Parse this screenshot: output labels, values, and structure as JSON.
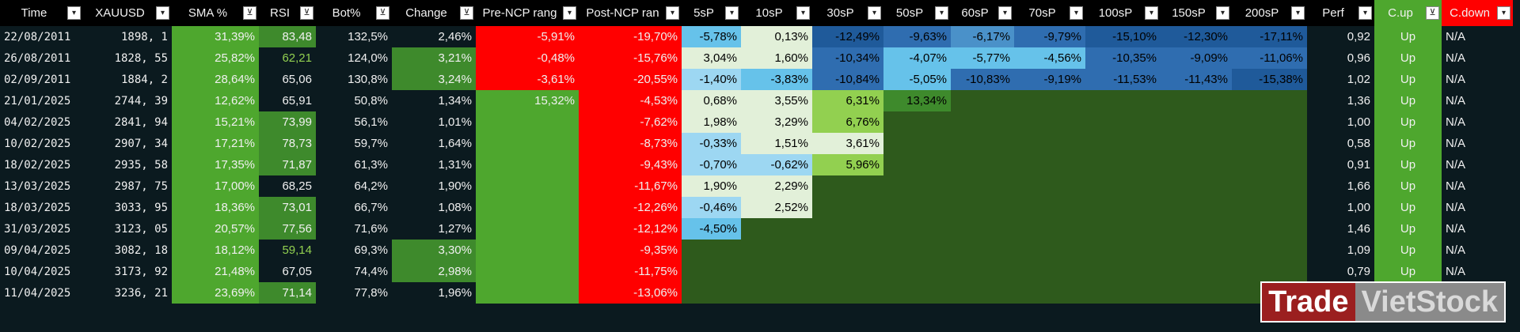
{
  "columns": [
    {
      "key": "time",
      "label": "Time",
      "filter": "dropdown",
      "width": 105,
      "bg": "#000000"
    },
    {
      "key": "xau",
      "label": "XAUUSD",
      "filter": "dropdown",
      "width": 112,
      "bg": "#000000"
    },
    {
      "key": "sma",
      "label": "SMA %",
      "filter": "active",
      "width": 110,
      "bg": "#000000"
    },
    {
      "key": "rsi",
      "label": "RSI",
      "filter": "active",
      "width": 72,
      "bg": "#000000"
    },
    {
      "key": "bot",
      "label": "Bot%",
      "filter": "active",
      "width": 96,
      "bg": "#000000"
    },
    {
      "key": "change",
      "label": "Change",
      "filter": "active",
      "width": 106,
      "bg": "#000000"
    },
    {
      "key": "pre",
      "label": "Pre-NCP rang",
      "filter": "dropdown",
      "width": 130,
      "bg": "#000000"
    },
    {
      "key": "post",
      "label": "Post-NCP ran",
      "filter": "dropdown",
      "width": 130,
      "bg": "#000000"
    },
    {
      "key": "s5",
      "label": "5sP",
      "filter": "dropdown",
      "width": 75,
      "bg": "#000000"
    },
    {
      "key": "s10",
      "label": "10sP",
      "filter": "dropdown",
      "width": 90,
      "bg": "#000000"
    },
    {
      "key": "s30",
      "label": "30sP",
      "filter": "dropdown",
      "width": 90,
      "bg": "#000000"
    },
    {
      "key": "s50",
      "label": "50sP",
      "filter": "dropdown",
      "width": 85,
      "bg": "#000000"
    },
    {
      "key": "s60",
      "label": "60sP",
      "filter": "dropdown",
      "width": 80,
      "bg": "#000000"
    },
    {
      "key": "s70",
      "label": "70sP",
      "filter": "dropdown",
      "width": 90,
      "bg": "#000000"
    },
    {
      "key": "s100",
      "label": "100sP",
      "filter": "dropdown",
      "width": 95,
      "bg": "#000000"
    },
    {
      "key": "s150",
      "label": "150sP",
      "filter": "dropdown",
      "width": 90,
      "bg": "#000000"
    },
    {
      "key": "s200",
      "label": "200sP",
      "filter": "dropdown",
      "width": 95,
      "bg": "#000000"
    },
    {
      "key": "perf",
      "label": "Perf",
      "filter": "dropdown",
      "width": 85,
      "bg": "#000000"
    },
    {
      "key": "cup",
      "label": "C.up",
      "filter": "active",
      "width": 85,
      "bg": "#4ea72e"
    },
    {
      "key": "cdown",
      "label": "C.down",
      "filter": "dropdown",
      "width": 90,
      "bg": "#ff0000"
    }
  ],
  "palette": {
    "empty": "#0b1a1f",
    "dark_green": "#2e5a1c",
    "mid_green": "#3e8a2c",
    "light_green": "#4ea72e",
    "pale_green_1": "#e2f0d9",
    "pale_green_2": "#c6e0b4",
    "green_cell": "#92d050",
    "red": "#ff0000",
    "blue_light": "#9dd7f2",
    "blue_mid": "#66c2ea",
    "blue_med": "#4a91c9",
    "blue_dark": "#2f6db0",
    "blue_deep": "#1f5a9a",
    "text_light": "#f0f0f0",
    "text_dark": "#000000",
    "rsi_green_text": "#92d050"
  },
  "rows": [
    {
      "time": "22/08/2011",
      "xau": "1898, 1",
      "sma": "31,39%",
      "rsi": "83,48",
      "bot": "132,5%",
      "change": "2,46%",
      "pre": "-5,91%",
      "post": "-19,70%",
      "s5": "-5,78%",
      "s10": "0,13%",
      "s30": "-12,49%",
      "s50": "-9,63%",
      "s60": "-6,17%",
      "s70": "-9,79%",
      "s100": "-15,10%",
      "s150": "-12,30%",
      "s200": "-17,11%",
      "perf": "0,92",
      "cup": "Up",
      "cdown": "N/A"
    },
    {
      "time": "26/08/2011",
      "xau": "1828, 55",
      "sma": "25,82%",
      "rsi": "62,21",
      "bot": "124,0%",
      "change": "3,21%",
      "pre": "-0,48%",
      "post": "-15,76%",
      "s5": "3,04%",
      "s10": "1,60%",
      "s30": "-10,34%",
      "s50": "-4,07%",
      "s60": "-5,77%",
      "s70": "-4,56%",
      "s100": "-10,35%",
      "s150": "-9,09%",
      "s200": "-11,06%",
      "perf": "0,96",
      "cup": "Up",
      "cdown": "N/A"
    },
    {
      "time": "02/09/2011",
      "xau": "1884, 2",
      "sma": "28,64%",
      "rsi": "65,06",
      "bot": "130,8%",
      "change": "3,24%",
      "pre": "-3,61%",
      "post": "-20,55%",
      "s5": "-1,40%",
      "s10": "-3,83%",
      "s30": "-10,84%",
      "s50": "-5,05%",
      "s60": "-10,83%",
      "s70": "-9,19%",
      "s100": "-11,53%",
      "s150": "-11,43%",
      "s200": "-15,38%",
      "perf": "1,02",
      "cup": "Up",
      "cdown": "N/A"
    },
    {
      "time": "21/01/2025",
      "xau": "2744, 39",
      "sma": "12,62%",
      "rsi": "65,91",
      "bot": "50,8%",
      "change": "1,34%",
      "pre": "15,32%",
      "post": "-4,53%",
      "s5": "0,68%",
      "s10": "3,55%",
      "s30": "6,31%",
      "s50": "13,34%",
      "s60": "",
      "s70": "",
      "s100": "",
      "s150": "",
      "s200": "",
      "perf": "1,36",
      "cup": "Up",
      "cdown": "N/A"
    },
    {
      "time": "04/02/2025",
      "xau": "2841, 94",
      "sma": "15,21%",
      "rsi": "73,99",
      "bot": "56,1%",
      "change": "1,01%",
      "pre": "",
      "post": "-7,62%",
      "s5": "1,98%",
      "s10": "3,29%",
      "s30": "6,76%",
      "s50": "",
      "s60": "",
      "s70": "",
      "s100": "",
      "s150": "",
      "s200": "",
      "perf": "1,00",
      "cup": "Up",
      "cdown": "N/A"
    },
    {
      "time": "10/02/2025",
      "xau": "2907, 34",
      "sma": "17,21%",
      "rsi": "78,73",
      "bot": "59,7%",
      "change": "1,64%",
      "pre": "",
      "post": "-8,73%",
      "s5": "-0,33%",
      "s10": "1,51%",
      "s30": "3,61%",
      "s50": "",
      "s60": "",
      "s70": "",
      "s100": "",
      "s150": "",
      "s200": "",
      "perf": "0,58",
      "cup": "Up",
      "cdown": "N/A"
    },
    {
      "time": "18/02/2025",
      "xau": "2935, 58",
      "sma": "17,35%",
      "rsi": "71,87",
      "bot": "61,3%",
      "change": "1,31%",
      "pre": "",
      "post": "-9,43%",
      "s5": "-0,70%",
      "s10": "-0,62%",
      "s30": "5,96%",
      "s50": "",
      "s60": "",
      "s70": "",
      "s100": "",
      "s150": "",
      "s200": "",
      "perf": "0,91",
      "cup": "Up",
      "cdown": "N/A"
    },
    {
      "time": "13/03/2025",
      "xau": "2987, 75",
      "sma": "17,00%",
      "rsi": "68,25",
      "bot": "64,2%",
      "change": "1,90%",
      "pre": "",
      "post": "-11,67%",
      "s5": "1,90%",
      "s10": "2,29%",
      "s30": "",
      "s50": "",
      "s60": "",
      "s70": "",
      "s100": "",
      "s150": "",
      "s200": "",
      "perf": "1,66",
      "cup": "Up",
      "cdown": "N/A"
    },
    {
      "time": "18/03/2025",
      "xau": "3033, 95",
      "sma": "18,36%",
      "rsi": "73,01",
      "bot": "66,7%",
      "change": "1,08%",
      "pre": "",
      "post": "-12,26%",
      "s5": "-0,46%",
      "s10": "2,52%",
      "s30": "",
      "s50": "",
      "s60": "",
      "s70": "",
      "s100": "",
      "s150": "",
      "s200": "",
      "perf": "1,00",
      "cup": "Up",
      "cdown": "N/A"
    },
    {
      "time": "31/03/2025",
      "xau": "3123, 05",
      "sma": "20,57%",
      "rsi": "77,56",
      "bot": "71,6%",
      "change": "1,27%",
      "pre": "",
      "post": "-12,12%",
      "s5": "-4,50%",
      "s10": "",
      "s30": "",
      "s50": "",
      "s60": "",
      "s70": "",
      "s100": "",
      "s150": "",
      "s200": "",
      "perf": "1,46",
      "cup": "Up",
      "cdown": "N/A"
    },
    {
      "time": "09/04/2025",
      "xau": "3082, 18",
      "sma": "18,12%",
      "rsi": "59,14",
      "bot": "69,3%",
      "change": "3,30%",
      "pre": "",
      "post": "-9,35%",
      "s5": "",
      "s10": "",
      "s30": "",
      "s50": "",
      "s60": "",
      "s70": "",
      "s100": "",
      "s150": "",
      "s200": "",
      "perf": "1,09",
      "cup": "Up",
      "cdown": "N/A"
    },
    {
      "time": "10/04/2025",
      "xau": "3173, 92",
      "sma": "21,48%",
      "rsi": "67,05",
      "bot": "74,4%",
      "change": "2,98%",
      "pre": "",
      "post": "-11,75%",
      "s5": "",
      "s10": "",
      "s30": "",
      "s50": "",
      "s60": "",
      "s70": "",
      "s100": "",
      "s150": "",
      "s200": "",
      "perf": "0,79",
      "cup": "Up",
      "cdown": "N/A"
    },
    {
      "time": "11/04/2025",
      "xau": "3236, 21",
      "sma": "23,69%",
      "rsi": "71,14",
      "bot": "77,8%",
      "change": "1,96%",
      "pre": "",
      "post": "-13,06%",
      "s5": "",
      "s10": "",
      "s30": "",
      "s50": "",
      "s60": "",
      "s70": "",
      "s100": "",
      "s150": "",
      "s200": "",
      "perf": "0,77",
      "cup": "Up",
      "cdown": "N/A"
    }
  ],
  "cell_styles": {
    "sma": "light_green",
    "pre_row0_2": "red",
    "post": "red",
    "cup": "light_green"
  },
  "watermark": {
    "left": "Trade",
    "right": "VietStock"
  }
}
